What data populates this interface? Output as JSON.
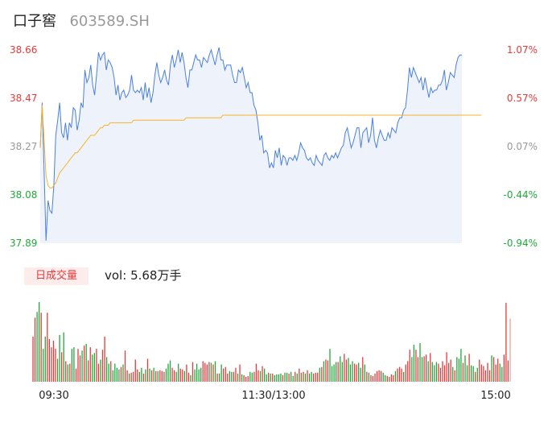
{
  "header": {
    "name": "口子窖",
    "code": "603589.SH"
  },
  "volume_panel": {
    "label": "日成交量",
    "vol_prefix": "vol:",
    "vol_value": "5.68万手"
  },
  "colors": {
    "price": "#4a7fe0",
    "avg": "#f5b32a",
    "up": "#e83a3a",
    "down": "#22a83a",
    "neutral": "#999999",
    "fill": "#eef3fb"
  },
  "chart_data": [
    {
      "type": "line",
      "title": "",
      "y_left_ticks": [
        "38.66",
        "38.47",
        "38.27",
        "38.08",
        "37.89"
      ],
      "y_right_ticks": [
        "1.07%",
        "0.57%",
        "0.07%",
        "-0.44%",
        "-0.94%"
      ],
      "ylim": [
        37.89,
        38.66
      ],
      "x_ticks": [
        "09:30",
        "11:30/13:00",
        "15:00"
      ],
      "series": [
        {
          "values": [
            38.27,
            38.45,
            38.18,
            37.9,
            38.06,
            38.02,
            38.01,
            38.12,
            38.32,
            38.38,
            38.45,
            38.33,
            38.31,
            38.37,
            38.3,
            38.37,
            38.35,
            38.43,
            38.42,
            38.34,
            38.38,
            38.45,
            38.43,
            38.58,
            38.53,
            38.55,
            38.6,
            38.52,
            38.48,
            38.56,
            38.65,
            38.62,
            38.64,
            38.65,
            38.58,
            38.62,
            38.61,
            38.59,
            38.55,
            38.48,
            38.52,
            38.46,
            38.49,
            38.5,
            38.47,
            38.48,
            38.5,
            38.56,
            38.5,
            38.49,
            38.5,
            38.49,
            38.51,
            38.46,
            38.53,
            38.47,
            38.51,
            38.45,
            38.49,
            38.56,
            38.61,
            38.56,
            38.53,
            38.55,
            38.58,
            38.54,
            38.52,
            38.6,
            38.64,
            38.59,
            38.62,
            38.66,
            38.61,
            38.65,
            38.61,
            38.55,
            38.51,
            38.58,
            38.58,
            38.61,
            38.64,
            38.62,
            38.62,
            38.59,
            38.63,
            38.62,
            38.61,
            38.64,
            38.66,
            38.63,
            38.6,
            38.64,
            38.67,
            38.62,
            38.62,
            38.58,
            38.6,
            38.6,
            38.6,
            38.56,
            38.53,
            38.53,
            38.58,
            38.57,
            38.59,
            38.55,
            38.51,
            38.53,
            38.49,
            38.49,
            38.44,
            38.42,
            38.37,
            38.3,
            38.32,
            38.25,
            38.26,
            38.25,
            38.19,
            38.21,
            38.19,
            38.26,
            38.23,
            38.27,
            38.2,
            38.24,
            38.23,
            38.2,
            38.23,
            38.23,
            38.22,
            38.24,
            38.22,
            38.25,
            38.29,
            38.27,
            38.26,
            38.23,
            38.22,
            38.23,
            38.21,
            38.2,
            38.24,
            38.22,
            38.21,
            38.2,
            38.24,
            38.25,
            38.23,
            38.22,
            38.24,
            38.23,
            38.25,
            38.23,
            38.25,
            38.27,
            38.28,
            38.33,
            38.35,
            38.31,
            38.27,
            38.29,
            38.32,
            38.35,
            38.35,
            38.27,
            38.33,
            38.34,
            38.35,
            38.29,
            38.32,
            38.39,
            38.3,
            38.27,
            38.31,
            38.34,
            38.32,
            38.3,
            38.3,
            38.33,
            38.31,
            38.35,
            38.34,
            38.33,
            38.37,
            38.39,
            38.39,
            38.42,
            38.43,
            38.5,
            38.59,
            38.55,
            38.59,
            38.57,
            38.55,
            38.53,
            38.55,
            38.5,
            38.55,
            38.51,
            38.47,
            38.51,
            38.49,
            38.5,
            38.5,
            38.52,
            38.52,
            38.54,
            38.58,
            38.5,
            38.53,
            38.57,
            38.56,
            38.55,
            38.6,
            38.63,
            38.64,
            38.64
          ]
        },
        {
          "values": [
            38.27,
            38.44,
            38.3,
            38.16,
            38.12,
            38.11,
            38.11,
            38.12,
            38.13,
            38.15,
            38.17,
            38.18,
            38.19,
            38.2,
            38.21,
            38.22,
            38.23,
            38.24,
            38.25,
            38.25,
            38.26,
            38.27,
            38.28,
            38.29,
            38.3,
            38.31,
            38.32,
            38.32,
            38.32,
            38.33,
            38.34,
            38.35,
            38.35,
            38.36,
            38.36,
            38.36,
            38.37,
            38.37,
            38.37,
            38.37,
            38.37,
            38.37,
            38.37,
            38.37,
            38.37,
            38.37,
            38.37,
            38.37,
            38.38,
            38.38,
            38.38,
            38.38,
            38.38,
            38.38,
            38.38,
            38.38,
            38.38,
            38.38,
            38.38,
            38.38,
            38.38,
            38.38,
            38.38,
            38.38,
            38.38,
            38.38,
            38.38,
            38.38,
            38.38,
            38.38,
            38.38,
            38.38,
            38.38,
            38.38,
            38.38,
            38.39,
            38.39,
            38.39,
            38.39,
            38.39,
            38.39,
            38.39,
            38.39,
            38.39,
            38.39,
            38.39,
            38.39,
            38.39,
            38.39,
            38.39,
            38.39,
            38.39,
            38.39,
            38.39,
            38.4,
            38.4,
            38.4,
            38.4,
            38.4,
            38.4,
            38.4,
            38.4,
            38.4,
            38.4,
            38.4,
            38.4,
            38.4,
            38.4,
            38.4,
            38.4,
            38.4,
            38.4,
            38.4,
            38.4,
            38.4,
            38.4,
            38.4,
            38.4,
            38.4,
            38.4,
            38.4,
            38.4,
            38.4,
            38.4,
            38.4,
            38.4,
            38.4,
            38.4,
            38.4,
            38.4,
            38.4,
            38.4,
            38.4,
            38.4,
            38.4,
            38.4,
            38.4,
            38.4,
            38.4,
            38.4,
            38.4,
            38.4,
            38.4,
            38.4,
            38.4,
            38.4,
            38.4,
            38.4,
            38.4,
            38.4,
            38.4,
            38.4,
            38.4,
            38.4,
            38.4,
            38.4,
            38.4,
            38.4,
            38.4,
            38.4,
            38.4,
            38.4,
            38.4,
            38.4,
            38.4,
            38.4,
            38.4,
            38.4,
            38.4,
            38.4,
            38.4,
            38.4,
            38.4,
            38.4,
            38.4,
            38.4,
            38.4,
            38.4,
            38.4,
            38.4,
            38.4,
            38.4,
            38.4,
            38.4,
            38.4,
            38.4,
            38.4,
            38.4,
            38.4,
            38.4,
            38.4,
            38.4,
            38.4,
            38.4,
            38.4,
            38.4,
            38.4,
            38.4,
            38.4,
            38.4,
            38.4,
            38.4,
            38.4,
            38.4,
            38.4,
            38.4,
            38.4,
            38.4,
            38.4,
            38.4,
            38.4,
            38.4,
            38.4,
            38.4,
            38.4,
            38.4,
            38.4,
            38.4,
            38.4,
            38.4,
            38.4,
            38.4,
            38.4,
            38.4,
            38.4,
            38.4,
            38.4,
            38.4
          ]
        }
      ]
    },
    {
      "type": "bar",
      "title": "",
      "series": [
        {
          "values": [
            55,
            78,
            85,
            97,
            84,
            40,
            55,
            84,
            52,
            42,
            50,
            40,
            28,
            57,
            36,
            60,
            25,
            21,
            22,
            40,
            42,
            16,
            40,
            32,
            38,
            44,
            46,
            26,
            42,
            33,
            35,
            40,
            22,
            27,
            39,
            55,
            30,
            22,
            25,
            14,
            22,
            17,
            15,
            18,
            21,
            38,
            14,
            10,
            11,
            12,
            27,
            15,
            12,
            17,
            10,
            15,
            28,
            16,
            14,
            17,
            13,
            13,
            14,
            13,
            12,
            16,
            22,
            26,
            17,
            14,
            12,
            22,
            16,
            15,
            13,
            21,
            11,
            8,
            24,
            15,
            22,
            15,
            17,
            25,
            23,
            21,
            24,
            23,
            21,
            25,
            10,
            10,
            21,
            16,
            18,
            10,
            13,
            12,
            12,
            17,
            10,
            21,
            9,
            8,
            6,
            7,
            12,
            11,
            12,
            22,
            14,
            13,
            19,
            16,
            9,
            11,
            10,
            10,
            8,
            9,
            9,
            10,
            8,
            11,
            11,
            10,
            12,
            7,
            12,
            10,
            16,
            11,
            12,
            10,
            14,
            10,
            12,
            10,
            11,
            11,
            17,
            18,
            25,
            27,
            26,
            40,
            19,
            21,
            24,
            24,
            31,
            24,
            34,
            27,
            29,
            21,
            25,
            22,
            21,
            23,
            17,
            30,
            21,
            12,
            11,
            8,
            7,
            10,
            13,
            14,
            13,
            11,
            8,
            7,
            6,
            9,
            8,
            13,
            16,
            18,
            16,
            12,
            21,
            25,
            39,
            30,
            45,
            39,
            30,
            47,
            30,
            31,
            33,
            25,
            35,
            24,
            20,
            24,
            22,
            17,
            25,
            20,
            36,
            23,
            27,
            18,
            14,
            30,
            28,
            40,
            23,
            32,
            20,
            34,
            20,
            19,
            12,
            17,
            27,
            21,
            19,
            14,
            23,
            14,
            32,
            30,
            21,
            28,
            22,
            18,
            33,
            96,
            26,
            77
          ]
        }
      ]
    }
  ]
}
